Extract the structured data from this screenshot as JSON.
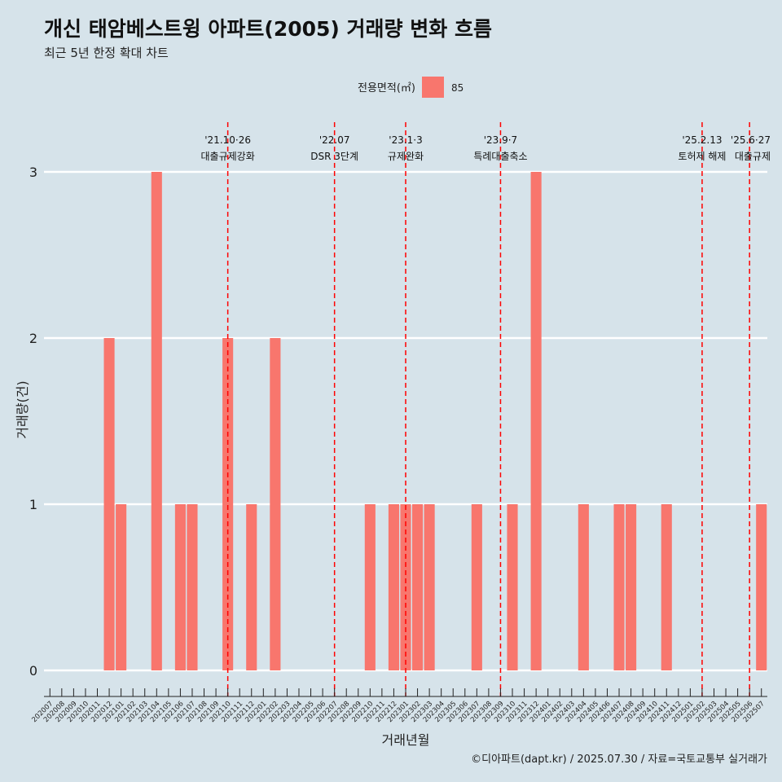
{
  "colors": {
    "background": "#d6e3ea",
    "bar": "#f8766d",
    "grid": "#ffffff",
    "event_line": "#ff0000",
    "text": "#222222"
  },
  "chart_data": {
    "type": "bar",
    "title": "개신 태암베스트윙 아파트(2005) 거래량 변화 흐름",
    "subtitle": "최근 5년 한정 확대 차트",
    "xlabel": "거래년월",
    "ylabel": "거래량(건)",
    "caption": "©디아파트(dapt.kr) / 2025.07.30 / 자료=국토교통부 실거래가",
    "legend": {
      "title": "전용면적(㎡)",
      "position": "top",
      "entries": [
        {
          "label": "85",
          "color": "#f8766d"
        }
      ]
    },
    "ylim": [
      0,
      3
    ],
    "y_ticks": [
      0,
      1,
      2,
      3
    ],
    "grid": true,
    "categories": [
      "202007",
      "202008",
      "202009",
      "202010",
      "202011",
      "202012",
      "202101",
      "202102",
      "202103",
      "202104",
      "202105",
      "202106",
      "202107",
      "202108",
      "202109",
      "202110",
      "202111",
      "202112",
      "202201",
      "202202",
      "202203",
      "202204",
      "202205",
      "202206",
      "202207",
      "202208",
      "202209",
      "202210",
      "202211",
      "202212",
      "202301",
      "202302",
      "202303",
      "202304",
      "202305",
      "202306",
      "202307",
      "202308",
      "202309",
      "202310",
      "202311",
      "202312",
      "202401",
      "202402",
      "202403",
      "202404",
      "202405",
      "202406",
      "202407",
      "202408",
      "202409",
      "202410",
      "202411",
      "202412",
      "202501",
      "202502",
      "202503",
      "202504",
      "202505",
      "202506",
      "202507"
    ],
    "series": [
      {
        "name": "85",
        "values": [
          0,
          0,
          0,
          0,
          0,
          2,
          1,
          0,
          0,
          3,
          0,
          1,
          1,
          0,
          0,
          2,
          0,
          1,
          0,
          2,
          0,
          0,
          0,
          0,
          0,
          0,
          0,
          1,
          0,
          1,
          1,
          1,
          1,
          0,
          0,
          0,
          1,
          0,
          0,
          1,
          0,
          3,
          0,
          0,
          0,
          1,
          0,
          0,
          1,
          1,
          0,
          0,
          1,
          0,
          0,
          0,
          0,
          0,
          0,
          0,
          1
        ]
      }
    ],
    "events": [
      {
        "category": "202110",
        "date_label": "'21.10·26",
        "label": "대출규제강화"
      },
      {
        "category": "202207",
        "date_label": "'22.07",
        "label": "DSR 3단계"
      },
      {
        "category": "202301",
        "date_label": "'23.1·3",
        "label": "규제완화"
      },
      {
        "category": "202309",
        "date_label": "'23.9·7",
        "label": "특례대출축소"
      },
      {
        "category": "202502",
        "date_label": "'25.2.13",
        "label": "토허제 해제"
      },
      {
        "category": "202506",
        "date_label": "'25.6·27",
        "label": "대출규제"
      }
    ]
  }
}
